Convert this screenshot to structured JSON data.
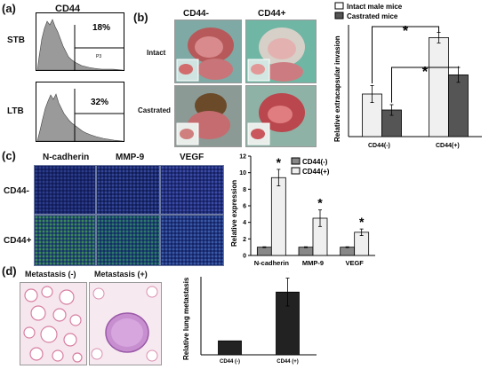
{
  "panel_a": {
    "letter": "(a)",
    "title": "CD44",
    "rows": [
      {
        "label": "STB",
        "percent": "18%",
        "gate": "P3"
      },
      {
        "label": "LTB",
        "percent": "32%",
        "gate": ""
      }
    ]
  },
  "panel_b": {
    "letter": "(b)",
    "col_labels": [
      "CD44-",
      "CD44+"
    ],
    "row_labels": [
      "Intact",
      "Castrated"
    ],
    "chart": {
      "ylabel": "Relative extracapsular invasion",
      "categories": [
        "CD44(-)",
        "CD44(+)"
      ],
      "legend": [
        "Intact male mice",
        "Castrated mice"
      ],
      "star": "*"
    }
  },
  "panel_c": {
    "letter": "(c)",
    "col_labels": [
      "N-cadherin",
      "MMP-9",
      "VEGF"
    ],
    "row_labels": [
      "CD44-",
      "CD44+"
    ],
    "chart": {
      "ylabel": "Relative expression",
      "categories": [
        "N-cadherin",
        "MMP-9",
        "VEGF"
      ],
      "legend": [
        "CD44(-)",
        "CD44(+)"
      ],
      "ticks": [
        "0",
        "2",
        "4",
        "6",
        "8",
        "10",
        "12"
      ],
      "star": "*"
    }
  },
  "panel_d": {
    "letter": "(d)",
    "col_labels": [
      "Metastasis (-)",
      "Metastasis (+)"
    ],
    "chart": {
      "ylabel": "Relative lung metastasis",
      "categories": [
        "CD44 (-)",
        "CD44 (+)"
      ],
      "star": "*"
    }
  },
  "chart_data": [
    {
      "type": "bar",
      "title": "",
      "ylabel": "Relative extracapsular invasion",
      "categories": [
        "CD44(-)",
        "CD44(+)"
      ],
      "series": [
        {
          "name": "Intact male mice",
          "values": [
            0.4,
            0.93
          ],
          "errors": [
            0.08,
            0.05
          ],
          "color": "#f0f0f0"
        },
        {
          "name": "Castrated mice",
          "values": [
            0.25,
            0.58
          ],
          "errors": [
            0.05,
            0.07
          ],
          "color": "#555555"
        }
      ],
      "ylim": [
        0,
        1.05
      ]
    },
    {
      "type": "bar",
      "title": "",
      "ylabel": "Relative expression",
      "categories": [
        "N-cadherin",
        "MMP-9",
        "VEGF"
      ],
      "series": [
        {
          "name": "CD44(-)",
          "values": [
            1.0,
            1.0,
            1.0
          ],
          "errors": [
            0.05,
            0.05,
            0.05
          ],
          "color": "#888888"
        },
        {
          "name": "CD44(+)",
          "values": [
            9.4,
            4.5,
            2.8
          ],
          "errors": [
            1.0,
            1.0,
            0.4
          ],
          "color": "#efefef"
        }
      ],
      "ylim": [
        0,
        12
      ],
      "yticks": [
        0,
        2,
        4,
        6,
        8,
        10,
        12
      ]
    },
    {
      "type": "bar",
      "title": "",
      "ylabel": "Relative lung metastasis",
      "categories": [
        "CD44 (-)",
        "CD44 (+)"
      ],
      "series": [
        {
          "name": "",
          "values": [
            1.0,
            4.5
          ],
          "errors": [
            0,
            1.0
          ],
          "color": "#222222"
        }
      ],
      "ylim": [
        0,
        5.6
      ]
    }
  ]
}
